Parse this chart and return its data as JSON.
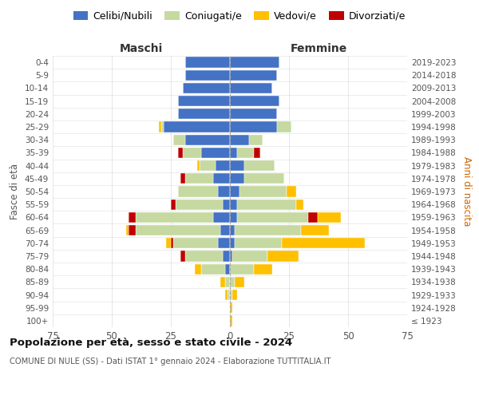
{
  "age_groups": [
    "100+",
    "95-99",
    "90-94",
    "85-89",
    "80-84",
    "75-79",
    "70-74",
    "65-69",
    "60-64",
    "55-59",
    "50-54",
    "45-49",
    "40-44",
    "35-39",
    "30-34",
    "25-29",
    "20-24",
    "15-19",
    "10-14",
    "5-9",
    "0-4"
  ],
  "birth_years": [
    "≤ 1923",
    "1924-1928",
    "1929-1933",
    "1934-1938",
    "1939-1943",
    "1944-1948",
    "1949-1953",
    "1954-1958",
    "1959-1963",
    "1964-1968",
    "1969-1973",
    "1974-1978",
    "1979-1983",
    "1984-1988",
    "1989-1993",
    "1994-1998",
    "1999-2003",
    "2004-2008",
    "2009-2013",
    "2014-2018",
    "2019-2023"
  ],
  "male": {
    "celibi": [
      0,
      0,
      0,
      0,
      2,
      3,
      5,
      4,
      7,
      3,
      5,
      7,
      6,
      12,
      19,
      28,
      22,
      22,
      20,
      19,
      19
    ],
    "coniugati": [
      0,
      0,
      1,
      2,
      10,
      16,
      19,
      36,
      33,
      20,
      17,
      12,
      7,
      8,
      5,
      1,
      0,
      0,
      0,
      0,
      0
    ],
    "vedovi": [
      0,
      0,
      1,
      2,
      3,
      0,
      2,
      1,
      0,
      0,
      0,
      0,
      1,
      0,
      0,
      1,
      0,
      0,
      0,
      0,
      0
    ],
    "divorziati": [
      0,
      0,
      0,
      0,
      0,
      2,
      1,
      3,
      3,
      2,
      0,
      2,
      0,
      2,
      0,
      0,
      0,
      0,
      0,
      0,
      0
    ]
  },
  "female": {
    "nubili": [
      0,
      0,
      0,
      0,
      0,
      1,
      2,
      2,
      3,
      3,
      4,
      6,
      6,
      3,
      8,
      20,
      20,
      21,
      18,
      20,
      21
    ],
    "coniugate": [
      0,
      0,
      1,
      2,
      10,
      15,
      20,
      28,
      30,
      25,
      20,
      17,
      13,
      7,
      6,
      6,
      0,
      0,
      0,
      0,
      0
    ],
    "vedove": [
      1,
      1,
      2,
      4,
      8,
      13,
      35,
      12,
      10,
      3,
      4,
      0,
      0,
      0,
      0,
      0,
      0,
      0,
      0,
      0,
      0
    ],
    "divorziate": [
      0,
      0,
      0,
      0,
      0,
      0,
      0,
      0,
      4,
      0,
      0,
      0,
      0,
      3,
      0,
      0,
      0,
      0,
      0,
      0,
      0
    ]
  },
  "colors": {
    "celibi_nubili": "#4472c4",
    "coniugati": "#c5d9a0",
    "vedovi": "#ffc000",
    "divorziati": "#c00000"
  },
  "title1": "Popolazione per età, sesso e stato civile - 2024",
  "title2": "COMUNE DI NULE (SS) - Dati ISTAT 1° gennaio 2024 - Elaborazione TUTTITALIA.IT",
  "xlabel_left": "Maschi",
  "xlabel_right": "Femmine",
  "ylabel_left": "Fasce di età",
  "ylabel_right": "Anni di nascita",
  "xlim": 75,
  "legend_labels": [
    "Celibi/Nubili",
    "Coniugati/e",
    "Vedovi/e",
    "Divorziati/e"
  ],
  "background_color": "#ffffff",
  "grid_color": "#cccccc"
}
